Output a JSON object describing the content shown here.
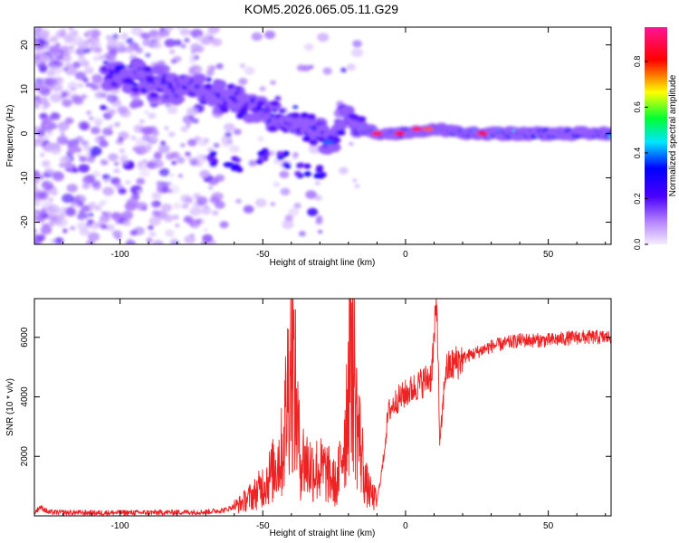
{
  "title": "KOM5.2026.065.05.11.G29",
  "chart_data": [
    {
      "type": "heatmap",
      "xlabel": "Height of straight line (km)",
      "ylabel": "Frequency (Hz)",
      "xlim": [
        -130,
        72
      ],
      "ylim": [
        -25,
        24
      ],
      "xticks": [
        -100,
        -50,
        0,
        50
      ],
      "yticks": [
        -20,
        -10,
        0,
        10,
        20
      ],
      "colorbar": {
        "label": "Normalized spectral amplitude",
        "range": [
          0,
          0.95
        ],
        "ticks": [
          0.0,
          0.2,
          0.4,
          0.6,
          0.8
        ],
        "colors": [
          "#f2e8ff",
          "#8a2be2",
          "#0000ff",
          "#00e5ff",
          "#00ff00",
          "#ffff00",
          "#ff0000",
          "#ff1493"
        ]
      },
      "ridge": [
        {
          "x": -105,
          "y": 14
        },
        {
          "x": -95,
          "y": 13
        },
        {
          "x": -85,
          "y": 11
        },
        {
          "x": -75,
          "y": 10
        },
        {
          "x": -67,
          "y": 10
        },
        {
          "x": -60,
          "y": 7
        },
        {
          "x": -55,
          "y": 6
        },
        {
          "x": -50,
          "y": 5
        },
        {
          "x": -45,
          "y": 3
        },
        {
          "x": -40,
          "y": 3
        },
        {
          "x": -35,
          "y": 2
        },
        {
          "x": -30,
          "y": 0
        },
        {
          "x": -25,
          "y": -1
        },
        {
          "x": -21,
          "y": 5
        },
        {
          "x": -18,
          "y": 2
        },
        {
          "x": -15,
          "y": 1
        },
        {
          "x": -10,
          "y": 0
        },
        {
          "x": 0,
          "y": 0
        },
        {
          "x": 10,
          "y": 1
        },
        {
          "x": 20,
          "y": 0
        },
        {
          "x": 30,
          "y": 0
        },
        {
          "x": 40,
          "y": 0
        },
        {
          "x": 50,
          "y": 0
        },
        {
          "x": 60,
          "y": 0
        },
        {
          "x": 72,
          "y": 0
        }
      ],
      "hot_spots": [
        {
          "x": -10,
          "y": 0,
          "level": 0.9
        },
        {
          "x": -2,
          "y": 0,
          "level": 0.85
        },
        {
          "x": 4,
          "y": 1,
          "level": 0.9
        },
        {
          "x": 8,
          "y": 1,
          "level": 0.8
        },
        {
          "x": 27,
          "y": 0,
          "level": 0.85
        },
        {
          "x": -27,
          "y": -2,
          "level": 0.4
        },
        {
          "x": -62,
          "y": -7,
          "level": 0.3
        },
        {
          "x": -100,
          "y": 15,
          "level": 0.3
        }
      ]
    },
    {
      "type": "line",
      "xlabel": "Height of straight line (km)",
      "ylabel": "SNR (10 * v/v)",
      "xlim": [
        -130,
        72
      ],
      "ylim": [
        0,
        7300
      ],
      "xticks": [
        -100,
        -50,
        0,
        50
      ],
      "yticks": [
        2000,
        4000,
        6000
      ],
      "color": "#ee2222",
      "series": [
        {
          "x": -130,
          "y": 100
        },
        {
          "x": -128,
          "y": 300
        },
        {
          "x": -125,
          "y": 120
        },
        {
          "x": -110,
          "y": 100
        },
        {
          "x": -90,
          "y": 110
        },
        {
          "x": -70,
          "y": 130
        },
        {
          "x": -63,
          "y": 200
        },
        {
          "x": -58,
          "y": 400
        },
        {
          "x": -52,
          "y": 800
        },
        {
          "x": -47,
          "y": 1400
        },
        {
          "x": -43,
          "y": 2200
        },
        {
          "x": -40,
          "y": 5800
        },
        {
          "x": -37,
          "y": 2000
        },
        {
          "x": -33,
          "y": 1600
        },
        {
          "x": -28,
          "y": 1500
        },
        {
          "x": -24,
          "y": 1000
        },
        {
          "x": -21,
          "y": 3000
        },
        {
          "x": -19,
          "y": 6300
        },
        {
          "x": -17,
          "y": 3200
        },
        {
          "x": -14,
          "y": 1100
        },
        {
          "x": -12,
          "y": 700
        },
        {
          "x": -10,
          "y": 500
        },
        {
          "x": -8,
          "y": 1700
        },
        {
          "x": -6,
          "y": 3500
        },
        {
          "x": -3,
          "y": 3900
        },
        {
          "x": 0,
          "y": 4100
        },
        {
          "x": 3,
          "y": 4300
        },
        {
          "x": 6,
          "y": 4500
        },
        {
          "x": 9,
          "y": 4700
        },
        {
          "x": 11,
          "y": 7200
        },
        {
          "x": 12,
          "y": 2300
        },
        {
          "x": 14,
          "y": 4900
        },
        {
          "x": 20,
          "y": 5300
        },
        {
          "x": 25,
          "y": 5500
        },
        {
          "x": 30,
          "y": 5700
        },
        {
          "x": 40,
          "y": 5900
        },
        {
          "x": 50,
          "y": 5900
        },
        {
          "x": 60,
          "y": 6000
        },
        {
          "x": 72,
          "y": 6000
        }
      ]
    }
  ]
}
